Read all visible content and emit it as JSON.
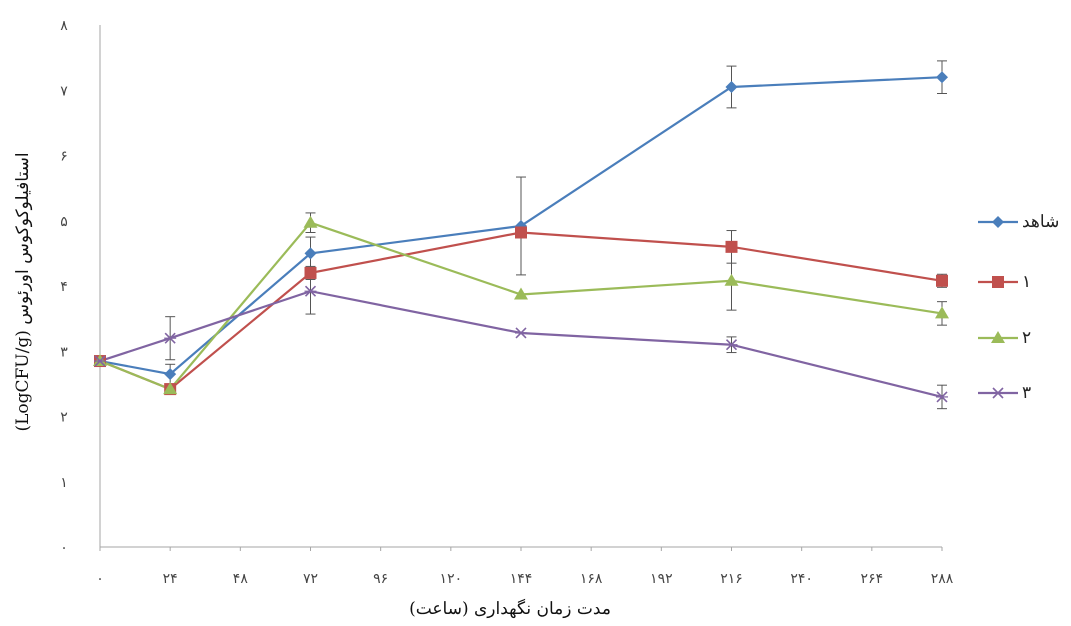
{
  "chart_data": {
    "type": "line",
    "xlabel": "مدت زمان نگهداری (ساعت)",
    "ylabel": "استافیلوکوکوس اورئوس (LogCFU/g)",
    "x": [
      0,
      24,
      72,
      144,
      216,
      288
    ],
    "x_tick_values": [
      0,
      24,
      48,
      72,
      96,
      120,
      144,
      168,
      192,
      216,
      240,
      264,
      288
    ],
    "x_tick_labels": [
      "۰",
      "۲۴",
      "۴۸",
      "۷۲",
      "۹۶",
      "۱۲۰",
      "۱۴۴",
      "۱۶۸",
      "۱۹۲",
      "۲۱۶",
      "۲۴۰",
      "۲۶۴",
      "۲۸۸"
    ],
    "y_tick_values": [
      0,
      1,
      2,
      3,
      4,
      5,
      6,
      7,
      8
    ],
    "y_tick_labels": [
      "۰",
      "۱",
      "۲",
      "۳",
      "۴",
      "۵",
      "۶",
      "۷",
      "۸"
    ],
    "xlim": [
      0,
      288
    ],
    "ylim": [
      0,
      8
    ],
    "grid": false,
    "legend_position": "right",
    "series": [
      {
        "name": "شاهد",
        "color": "#4a7ebb",
        "marker": "diamond",
        "values": [
          2.85,
          2.65,
          4.5,
          4.92,
          7.05,
          7.2
        ],
        "errors": [
          0,
          0.15,
          0.25,
          0.75,
          0.32,
          0.25
        ]
      },
      {
        "name": "۱",
        "color": "#c0504d",
        "marker": "square",
        "values": [
          2.85,
          2.42,
          4.2,
          4.82,
          4.6,
          4.08
        ],
        "errors": [
          0,
          0,
          0.1,
          0.05,
          0.25,
          0.1
        ]
      },
      {
        "name": "۲",
        "color": "#9bbb59",
        "marker": "triangle",
        "values": [
          2.85,
          2.42,
          4.97,
          3.87,
          4.08,
          3.58
        ],
        "errors": [
          0,
          0,
          0.15,
          0,
          0.45,
          0.18
        ]
      },
      {
        "name": "۳",
        "color": "#8064a2",
        "marker": "x",
        "values": [
          2.85,
          3.2,
          3.92,
          3.28,
          3.1,
          2.3
        ],
        "errors": [
          0,
          0.33,
          0.35,
          0,
          0.12,
          0.18
        ]
      }
    ]
  }
}
